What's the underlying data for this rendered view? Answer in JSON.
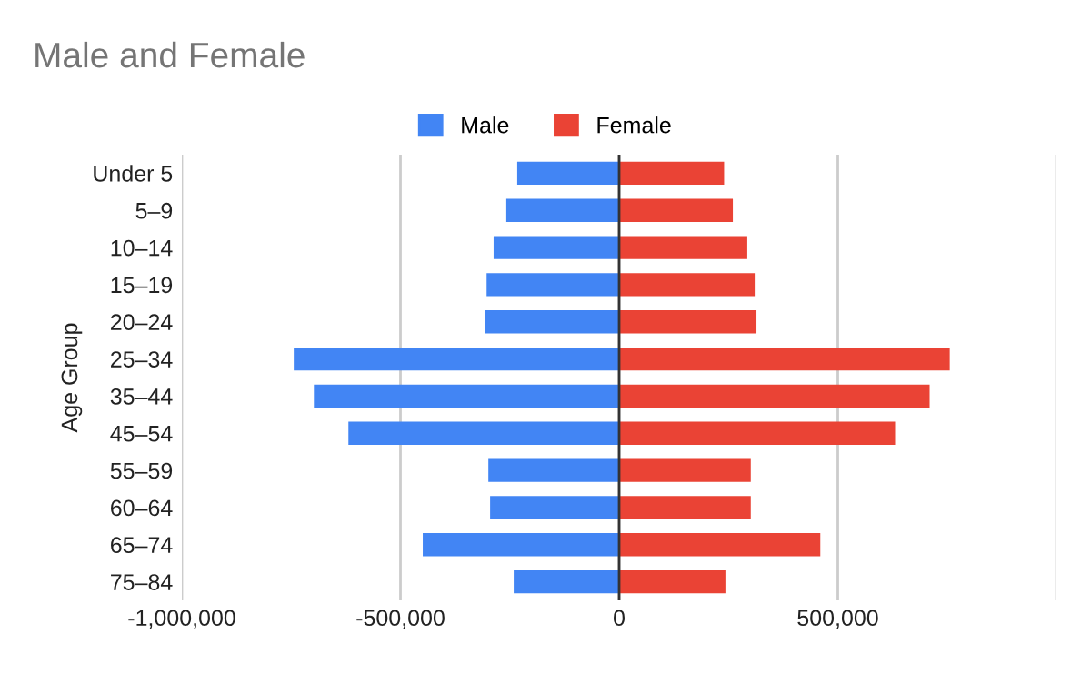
{
  "chart_data": {
    "type": "bar",
    "orientation": "horizontal",
    "stacked": true,
    "title": "Male and Female",
    "ylabel": "Age Group",
    "categories": [
      "Under 5",
      "5–9",
      "10–14",
      "15–19",
      "20–24",
      "25–34",
      "35–44",
      "45–54",
      "55–59",
      "60–64",
      "65–74",
      "75–84"
    ],
    "series": [
      {
        "name": "Male",
        "color": "#4285f4",
        "values": [
          -233000,
          -258000,
          -287000,
          -303000,
          -307000,
          -744000,
          -698000,
          -619000,
          -299000,
          -295000,
          -449000,
          -241000
        ]
      },
      {
        "name": "Female",
        "color": "#ea4335",
        "values": [
          240000,
          260000,
          293000,
          310000,
          314000,
          756000,
          710000,
          631000,
          301000,
          301000,
          460000,
          243000
        ]
      }
    ],
    "xlim": [
      -1000000,
      1000000
    ],
    "xticks": [
      {
        "value": -1000000,
        "label": "-1,000,000"
      },
      {
        "value": -500000,
        "label": "-500,000"
      },
      0,
      {
        "value": 500000,
        "label": "500,000"
      },
      {
        "value": 1000000,
        "label": null
      }
    ],
    "grid": "x",
    "legend": "top"
  }
}
